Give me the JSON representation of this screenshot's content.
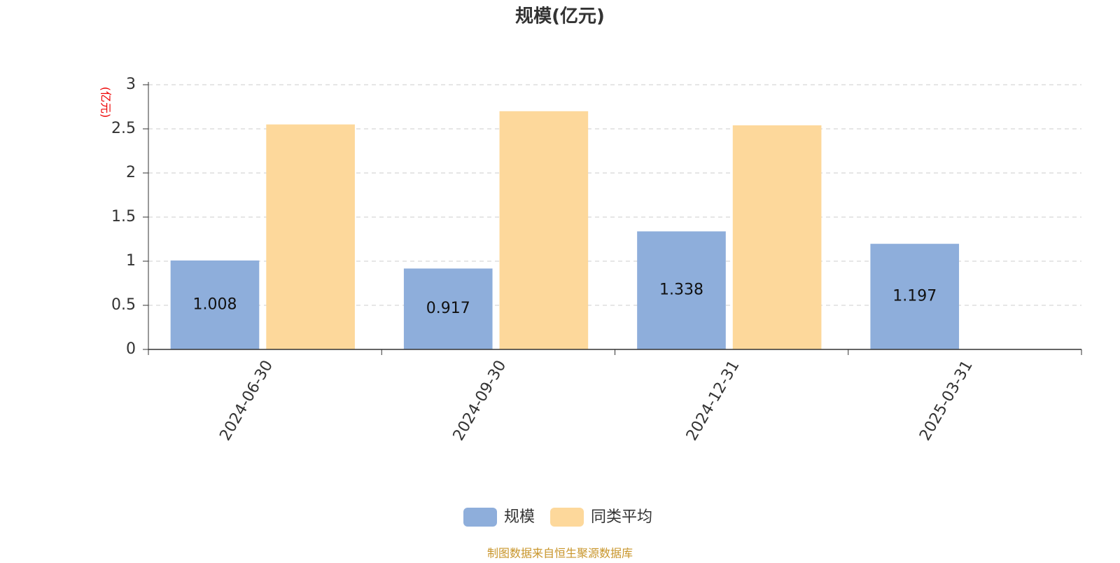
{
  "chart_data": {
    "type": "bar",
    "title": "规模(亿元)",
    "y_axis_label": "(亿元)",
    "categories": [
      "2024-06-30",
      "2024-09-30",
      "2024-12-31",
      "2025-03-31"
    ],
    "series": [
      {
        "name": "规模",
        "color": "#8eaedb",
        "values": [
          1.008,
          0.917,
          1.338,
          1.197
        ]
      },
      {
        "name": "同类平均",
        "color": "#fdd89b",
        "values": [
          2.55,
          2.7,
          2.54,
          null
        ]
      }
    ],
    "ylim": [
      0,
      3
    ],
    "yticks": [
      0,
      0.5,
      1,
      1.5,
      2,
      2.5,
      3
    ],
    "grid": true,
    "legend": "bottom",
    "source": "制图数据来自恒生聚源数据库"
  }
}
